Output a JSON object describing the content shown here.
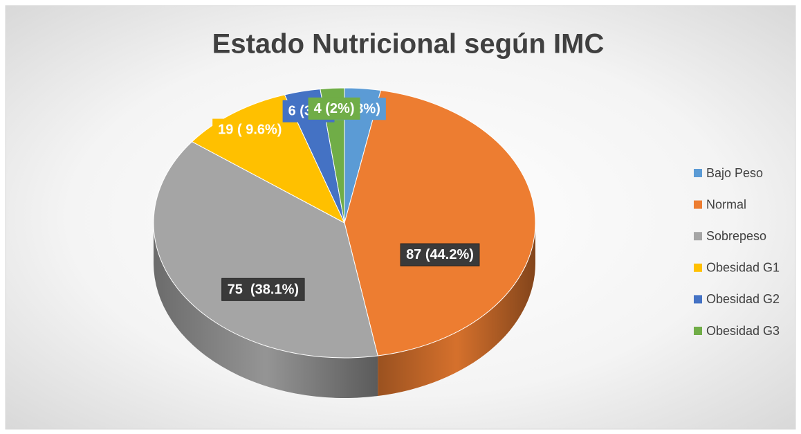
{
  "chart_data": {
    "type": "pie3d",
    "title": "Estado Nutricional según IMC",
    "categories": [
      "Bajo Peso",
      "Normal",
      "Sobrepeso",
      "Obesidad G1",
      "Obesidad G2",
      "Obesidad G3"
    ],
    "values": [
      6,
      87,
      75,
      19,
      6,
      4
    ],
    "value_labels": [
      "6 (3%)",
      "87 (44.2%)",
      "75  (38.1%)",
      "19 ( 9.6%)",
      "6 (3%)",
      "4 (2%)"
    ],
    "colors": [
      "#5b9bd5",
      "#ed7d31",
      "#a5a5a5",
      "#ffc000",
      "#4472c4",
      "#70ad47"
    ],
    "legend": "right"
  }
}
